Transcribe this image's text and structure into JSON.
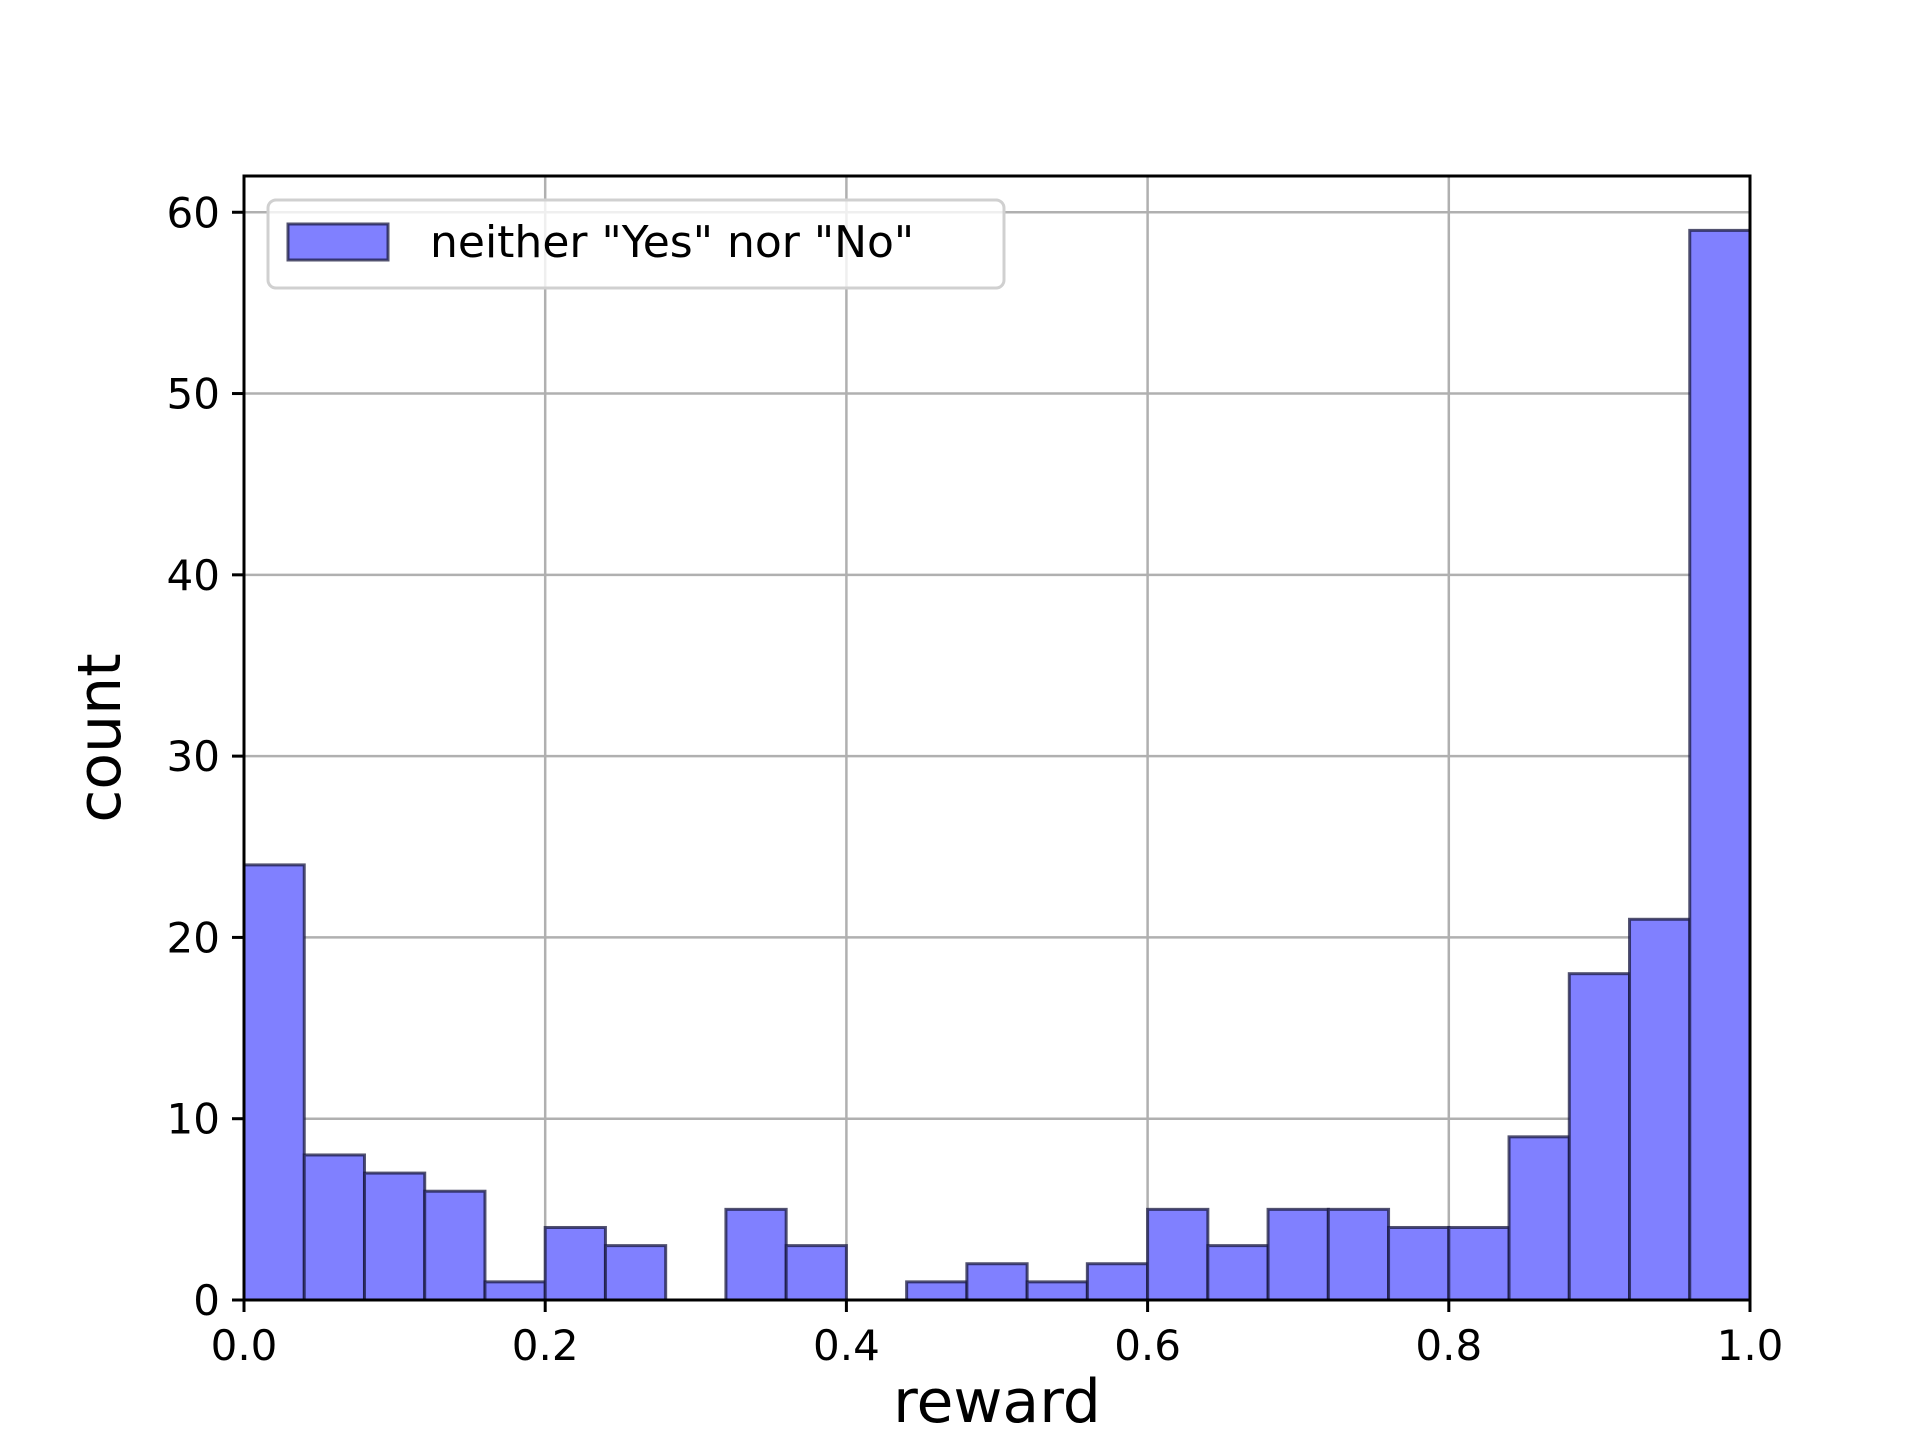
{
  "chart_data": {
    "type": "bar",
    "title": "",
    "xlabel": "reward",
    "ylabel": "count",
    "xlim": [
      0.0,
      1.0
    ],
    "ylim": [
      0,
      62
    ],
    "x_ticks": [
      "0.0",
      "0.2",
      "0.4",
      "0.6",
      "0.8",
      "1.0"
    ],
    "y_ticks": [
      "0",
      "10",
      "20",
      "30",
      "40",
      "50",
      "60"
    ],
    "grid": true,
    "legend_position": "top-left",
    "bin_width": 0.04,
    "bins": [
      0.0,
      0.04,
      0.08,
      0.12,
      0.16,
      0.2,
      0.24,
      0.28,
      0.32,
      0.36,
      0.4,
      0.44,
      0.48,
      0.52,
      0.56,
      0.6,
      0.64,
      0.68,
      0.72,
      0.76,
      0.8,
      0.84,
      0.88,
      0.92,
      0.96
    ],
    "series": [
      {
        "name": "neither \"Yes\" nor \"No\"",
        "color": "#8080ff",
        "edge_color": "#1a1a40",
        "values": [
          24,
          8,
          7,
          6,
          1,
          4,
          3,
          0,
          5,
          3,
          0,
          1,
          2,
          1,
          2,
          5,
          3,
          5,
          5,
          4,
          4,
          9,
          18,
          21,
          59
        ]
      }
    ]
  }
}
